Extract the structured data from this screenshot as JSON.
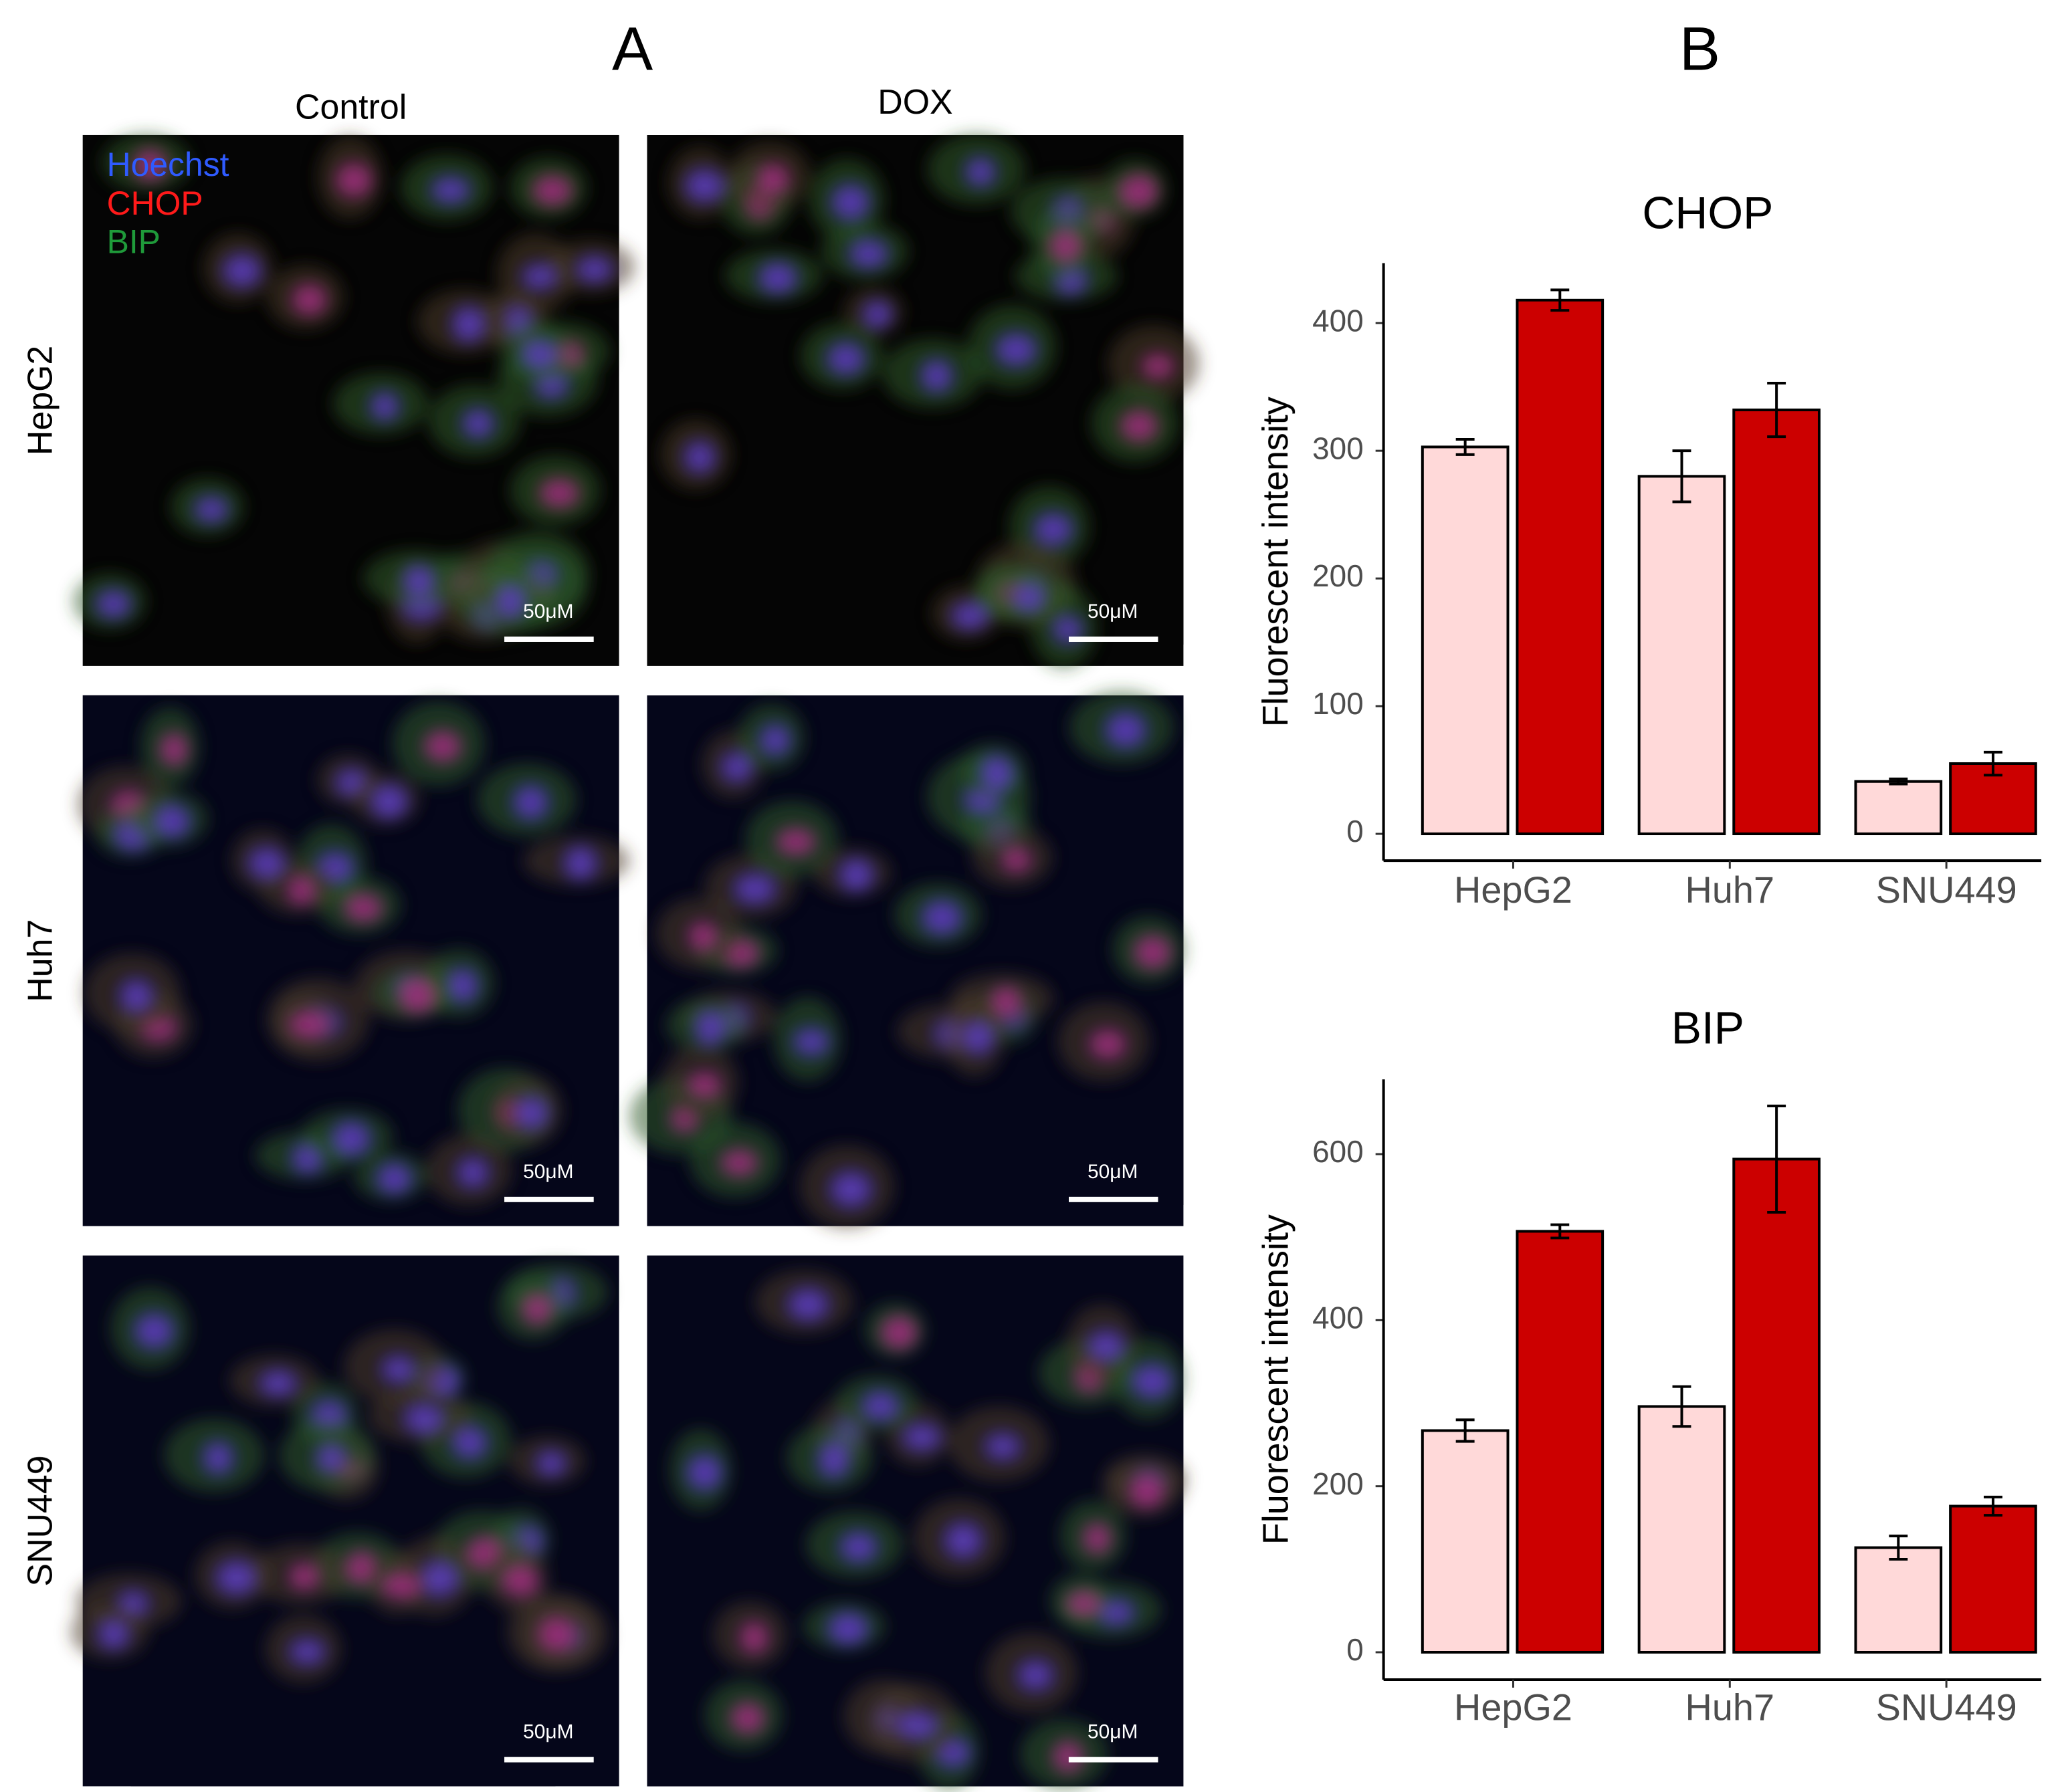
{
  "panel_labels": [
    "A",
    "B"
  ],
  "micrographs": {
    "columns": [
      "Control",
      "DOX"
    ],
    "rows": [
      "HepG2",
      "Huh7",
      "SNU449"
    ],
    "stains": [
      {
        "name": "Hoechst",
        "color": "#2f5bff"
      },
      {
        "name": "CHOP",
        "color": "#ff1a1a"
      },
      {
        "name": "BIP",
        "color": "#1f9a3a"
      }
    ],
    "scale_bar": "50μM"
  },
  "chart_data": [
    {
      "type": "bar",
      "title": "CHOP",
      "y_label": "Fluorescent intensity",
      "categories": [
        "HepG2",
        "Huh7",
        "SNU449"
      ],
      "series": [
        {
          "color": "#ffd9d9",
          "values": [
            303,
            280,
            41
          ],
          "errors": [
            6,
            20,
            2
          ]
        },
        {
          "color": "#cc0000",
          "values": [
            418,
            332,
            55
          ],
          "errors": [
            8,
            21,
            9
          ]
        }
      ],
      "ylim": [
        -21,
        447
      ],
      "yticks": [
        0,
        100,
        200,
        300,
        400
      ]
    },
    {
      "type": "bar",
      "title": "BIP",
      "y_label": "Fluorescent intensity",
      "categories": [
        "HepG2",
        "Huh7",
        "SNU449"
      ],
      "series": [
        {
          "color": "#ffd9d9",
          "values": [
            267,
            296,
            126
          ],
          "errors": [
            13,
            24,
            14
          ]
        },
        {
          "color": "#cc0000",
          "values": [
            507,
            594,
            176
          ],
          "errors": [
            8,
            64,
            11
          ]
        }
      ],
      "ylim": [
        -33,
        690
      ],
      "yticks": [
        0,
        200,
        400,
        600
      ]
    }
  ]
}
